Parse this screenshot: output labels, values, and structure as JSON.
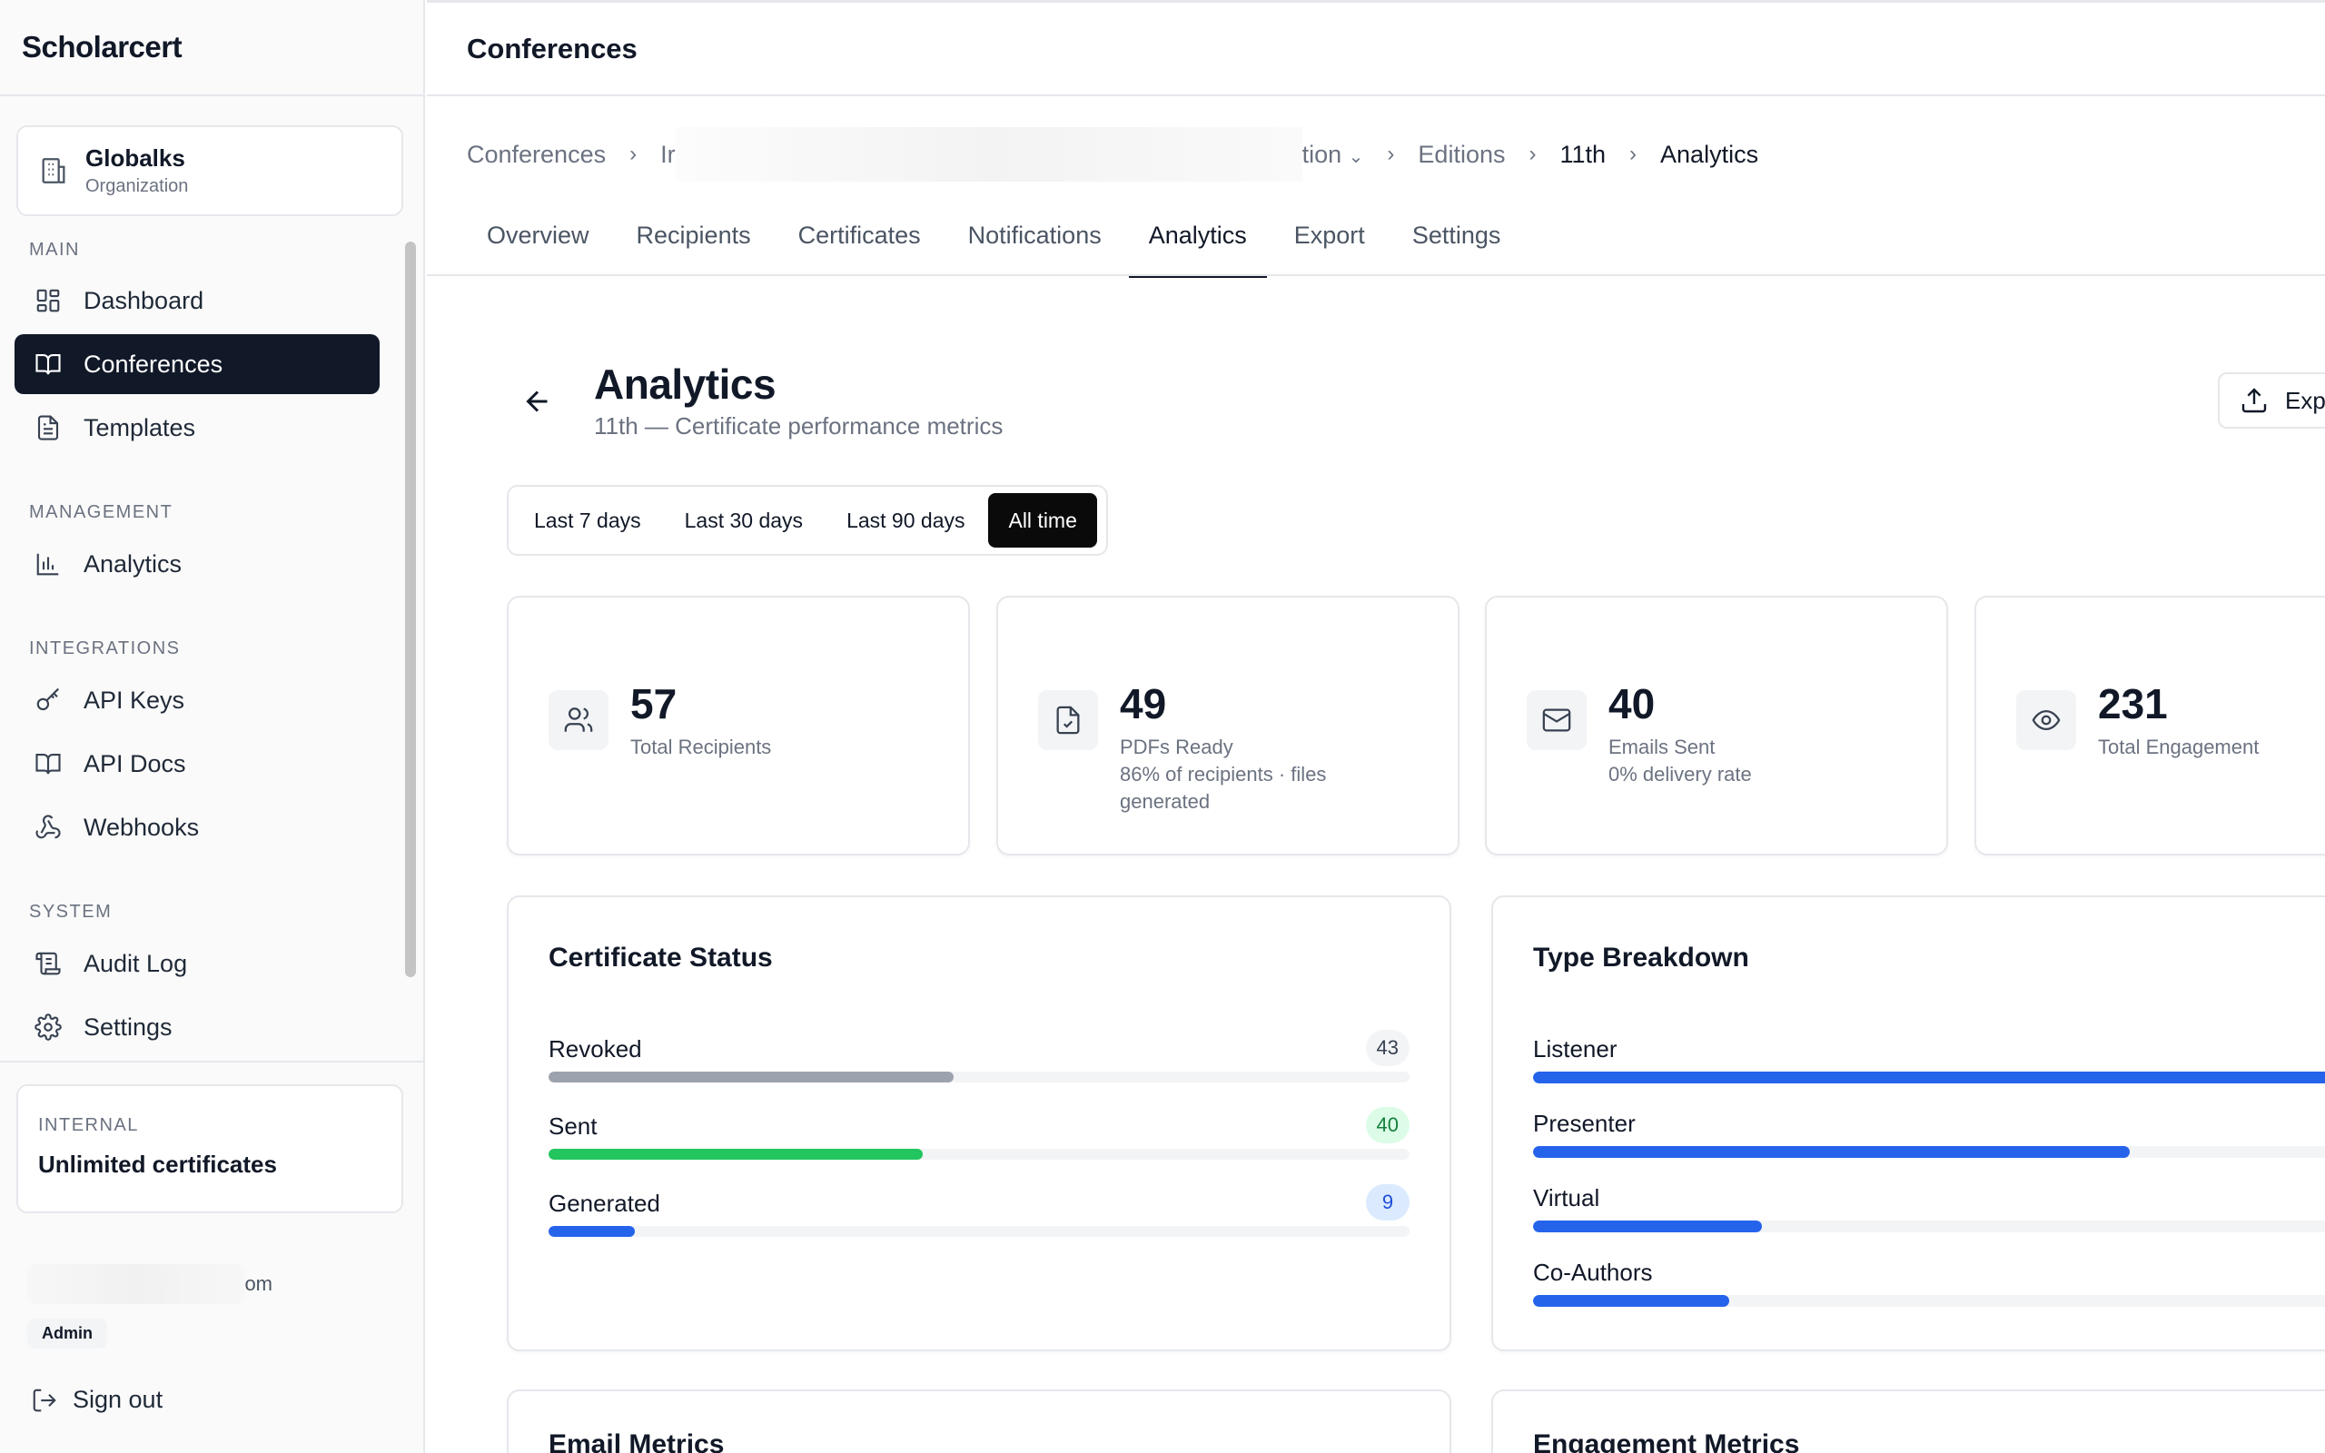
{
  "app": {
    "brand": "Scholarcert"
  },
  "org": {
    "name": "Globalks",
    "type": "Organization"
  },
  "nav": {
    "sections": [
      {
        "label": "MAIN"
      },
      {
        "label": "MANAGEMENT"
      },
      {
        "label": "INTEGRATIONS"
      },
      {
        "label": "SYSTEM"
      }
    ],
    "items": [
      {
        "label": "Dashboard",
        "icon": "grid-icon"
      },
      {
        "label": "Conferences",
        "icon": "book-icon",
        "active": true
      },
      {
        "label": "Templates",
        "icon": "file-icon"
      },
      {
        "label": "Analytics",
        "icon": "bar-chart-icon"
      },
      {
        "label": "API Keys",
        "icon": "key-icon"
      },
      {
        "label": "API Docs",
        "icon": "book-icon"
      },
      {
        "label": "Webhooks",
        "icon": "webhook-icon"
      },
      {
        "label": "Audit Log",
        "icon": "scroll-icon"
      },
      {
        "label": "Settings",
        "icon": "gear-icon"
      }
    ]
  },
  "plan": {
    "label": "INTERNAL",
    "value": "Unlimited certificates"
  },
  "user": {
    "email_suffix": "om",
    "role": "Admin"
  },
  "signout": "Sign out",
  "header": {
    "title": "Conferences"
  },
  "breadcrumb": {
    "items": [
      "Conferences",
      "Ir",
      "tion",
      "Editions",
      "11th",
      "Analytics"
    ]
  },
  "tabs": [
    {
      "label": "Overview"
    },
    {
      "label": "Recipients"
    },
    {
      "label": "Certificates"
    },
    {
      "label": "Notifications"
    },
    {
      "label": "Analytics",
      "active": true
    },
    {
      "label": "Export"
    },
    {
      "label": "Settings"
    }
  ],
  "page": {
    "title": "Analytics",
    "subtitle": "11th — Certificate performance metrics",
    "export_label": "Exp"
  },
  "ranges": [
    {
      "label": "Last 7 days"
    },
    {
      "label": "Last 30 days"
    },
    {
      "label": "Last 90 days"
    },
    {
      "label": "All time",
      "active": true
    }
  ],
  "stats": [
    {
      "value": "57",
      "label": "Total Recipients",
      "icon": "users-icon"
    },
    {
      "value": "49",
      "label": "PDFs Ready",
      "detail": "86% of recipients · files generated",
      "icon": "file-check-icon"
    },
    {
      "value": "40",
      "label": "Emails Sent",
      "detail": "0% delivery rate",
      "icon": "mail-icon"
    },
    {
      "value": "231",
      "label": "Total Engagement",
      "icon": "eye-icon"
    }
  ],
  "certificate_status": {
    "title": "Certificate Status",
    "rows": [
      {
        "label": "Revoked",
        "count": "43",
        "fraction": 0.47,
        "color": "#9ca3af",
        "badge_bg": "#f3f4f6",
        "badge_fg": "#374151"
      },
      {
        "label": "Sent",
        "count": "40",
        "fraction": 0.435,
        "color": "#22c55e",
        "badge_bg": "#dcfce7",
        "badge_fg": "#15803d"
      },
      {
        "label": "Generated",
        "count": "9",
        "fraction": 0.1,
        "color": "#2563eb",
        "badge_bg": "#dbeafe",
        "badge_fg": "#1d4ed8"
      }
    ]
  },
  "type_breakdown": {
    "title": "Type Breakdown",
    "rows": [
      {
        "label": "Listener",
        "fraction": 1.0
      },
      {
        "label": "Presenter",
        "fraction": 0.73
      },
      {
        "label": "Virtual",
        "fraction": 0.28
      },
      {
        "label": "Co-Authors",
        "fraction": 0.24
      }
    ]
  },
  "lower_panels": [
    "Email Metrics",
    "Engagement Metrics"
  ],
  "colors": {
    "accent": "#111827",
    "blue": "#2563eb",
    "green": "#22c55e"
  }
}
